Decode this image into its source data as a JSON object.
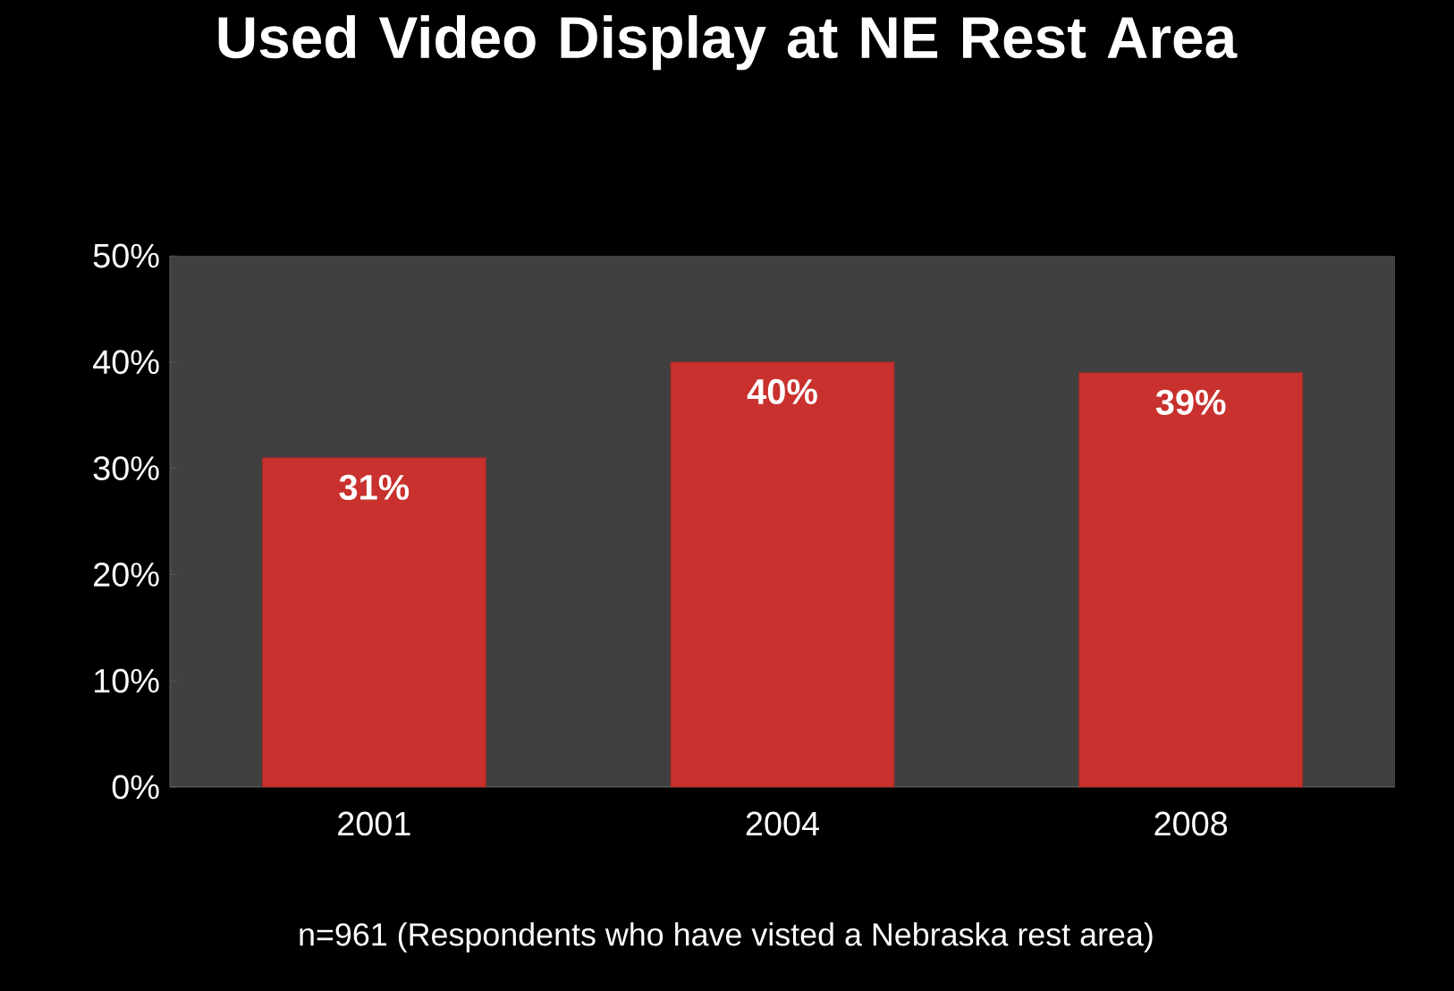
{
  "chart_data": {
    "type": "bar",
    "title": "Used Video Display at NE Rest Area",
    "categories": [
      "2001",
      "2004",
      "2008"
    ],
    "values": [
      31,
      40,
      39
    ],
    "color": "#c8312d",
    "value_labels": [
      "31%",
      "40%",
      "39%"
    ],
    "ylim": [
      0,
      50
    ],
    "yticks": [
      {
        "value": 0,
        "label": "0%"
      },
      {
        "value": 10,
        "label": "10%"
      },
      {
        "value": 20,
        "label": "20%"
      },
      {
        "value": 30,
        "label": "30%"
      },
      {
        "value": 40,
        "label": "40%"
      },
      {
        "value": 50,
        "label": "50%"
      }
    ],
    "annotations": [
      "n=961 (Respondents who have visted a Nebraska rest area)"
    ]
  }
}
